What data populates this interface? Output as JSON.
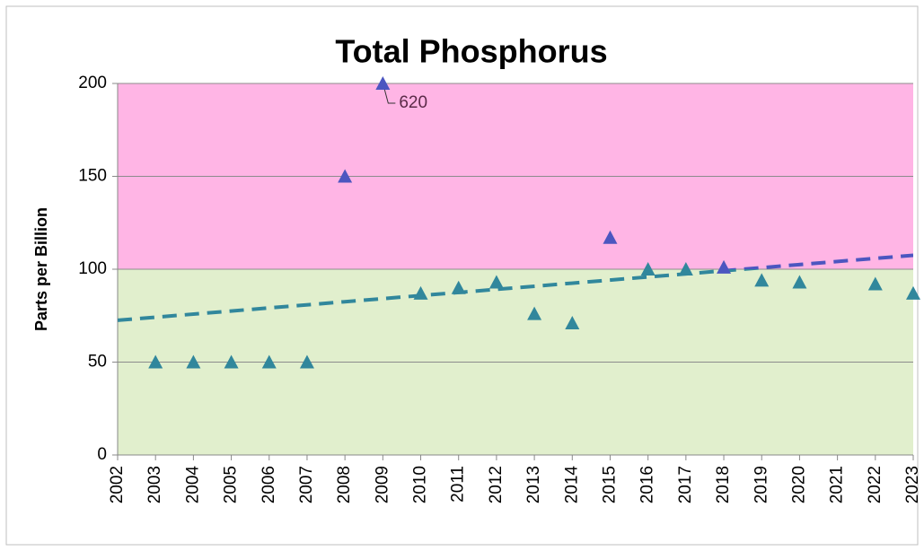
{
  "chart_data": {
    "type": "scatter",
    "title": "Total Phosphorus",
    "ylabel": "Parts per Billion",
    "xlim": [
      2002,
      2023
    ],
    "xticks": [
      2002,
      2003,
      2004,
      2005,
      2006,
      2007,
      2008,
      2009,
      2010,
      2011,
      2012,
      2013,
      2014,
      2015,
      2016,
      2017,
      2018,
      2019,
      2020,
      2021,
      2022,
      2023
    ],
    "ylim": [
      0,
      200
    ],
    "yticks": [
      0,
      50,
      100,
      150,
      200
    ],
    "grid": true,
    "bands": [
      {
        "from": 0,
        "to": 100,
        "color": "#e1efcd",
        "marker_color": "#31879c"
      },
      {
        "from": 100,
        "to": 200,
        "color": "#ffb5e5",
        "marker_color": "#4c56c0"
      }
    ],
    "series": [
      {
        "x": [
          2003,
          2004,
          2005,
          2006,
          2007,
          2008,
          2009,
          2010,
          2011,
          2012,
          2013,
          2014,
          2015,
          2016,
          2017,
          2018,
          2019,
          2020,
          2022,
          2023
        ],
        "values": [
          50,
          50,
          50,
          50,
          50,
          150,
          620,
          87,
          90,
          93,
          76,
          71,
          117,
          100,
          100,
          101,
          94,
          93,
          92,
          87
        ],
        "value_labels": [
          null,
          null,
          null,
          null,
          null,
          null,
          "620",
          null,
          null,
          null,
          null,
          null,
          null,
          null,
          null,
          null,
          null,
          null,
          null,
          null
        ]
      }
    ],
    "trendline": {
      "x": [
        2002,
        2023
      ],
      "values": [
        72.5,
        107.5
      ]
    }
  }
}
